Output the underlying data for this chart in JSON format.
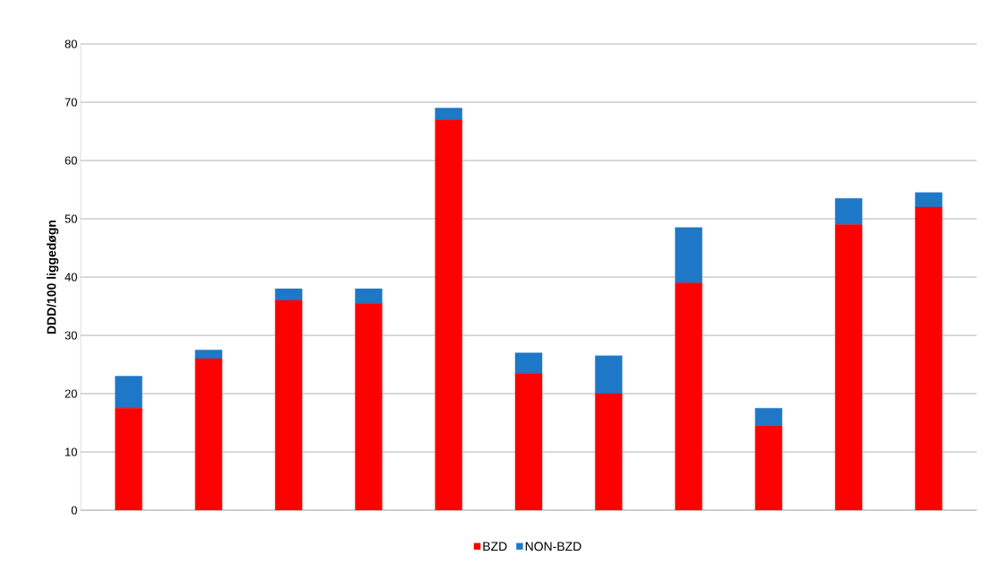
{
  "chart_data": {
    "type": "bar",
    "stacked": true,
    "ylabel": "DDD/100 liggedøgn",
    "categories": [
      null,
      null,
      null,
      null,
      null,
      null,
      null,
      null,
      null,
      null,
      null
    ],
    "series": [
      {
        "name": "BZD",
        "color": "#ff0000",
        "values": [
          17.5,
          26,
          36,
          35.5,
          67,
          23.5,
          20,
          39,
          14.5,
          49,
          52
        ]
      },
      {
        "name": "NON-BZD",
        "color": "#1f77c8",
        "values": [
          5.5,
          1.5,
          2,
          2.5,
          2,
          3.5,
          6.5,
          9.5,
          3,
          4.5,
          2.5
        ]
      }
    ],
    "ylim": [
      0,
      80
    ],
    "yticks": [
      0,
      10,
      20,
      30,
      40,
      50,
      60,
      70,
      80
    ],
    "grid": "y",
    "legend": "bottom"
  }
}
